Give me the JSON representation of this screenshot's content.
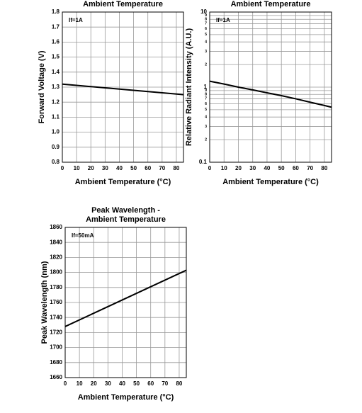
{
  "chart_data": [
    {
      "type": "line",
      "title": [
        "Ambient Temperature"
      ],
      "annotation": "If=1A",
      "x_label": "Ambient Temperature (°C)",
      "y_label": "Forward Voltage (V)",
      "xlim": [
        0,
        85
      ],
      "xticks": [
        0,
        10,
        20,
        30,
        40,
        50,
        60,
        70,
        80
      ],
      "ylim": [
        0.8,
        1.8
      ],
      "yticks": [
        0.8,
        0.9,
        {
          "value": 1,
          "label": "1.0"
        },
        1.1,
        1.2,
        1.3,
        1.4,
        1.5,
        1.6,
        1.7,
        1.8
      ],
      "grid": true,
      "log_y": false,
      "series": [
        {
          "color": "#000000",
          "x": [
            0,
            85
          ],
          "values": [
            1.32,
            1.25
          ]
        }
      ]
    },
    {
      "type": "line",
      "title": [
        "Ambient Temperature"
      ],
      "annotation": "If=1A",
      "x_label": "Ambient Temperature (°C)",
      "y_label": "Relative Radiant Intensity (A.U.)",
      "xlim": [
        0,
        85
      ],
      "xticks": [
        0,
        10,
        20,
        30,
        40,
        50,
        60,
        70,
        80
      ],
      "ylim": [
        0.1,
        10
      ],
      "yticks": [
        0.1,
        {
          "value": 0.2,
          "label": "2"
        },
        {
          "value": 0.3,
          "label": "3"
        },
        {
          "value": 0.4,
          "label": "4"
        },
        {
          "value": 0.5,
          "label": "5"
        },
        {
          "value": 0.6,
          "label": "6"
        },
        {
          "value": 0.7,
          "label": "7"
        },
        {
          "value": 0.8,
          "label": "8"
        },
        {
          "value": 0.9,
          "label": "9"
        },
        1,
        {
          "value": 2,
          "label": "2"
        },
        {
          "value": 3,
          "label": "3"
        },
        {
          "value": 4,
          "label": "4"
        },
        {
          "value": 5,
          "label": "5"
        },
        {
          "value": 6,
          "label": "6"
        },
        {
          "value": 7,
          "label": "7"
        },
        {
          "value": 8,
          "label": "8"
        },
        {
          "value": 9,
          "label": "9"
        },
        10
      ],
      "grid": true,
      "log_y": true,
      "series": [
        {
          "color": "#000000",
          "x": [
            0,
            10,
            20,
            30,
            40,
            50,
            60,
            70,
            80,
            85
          ],
          "values": [
            1.2,
            1.1,
            1.0,
            0.92,
            0.84,
            0.77,
            0.7,
            0.63,
            0.57,
            0.54
          ]
        }
      ]
    },
    {
      "type": "line",
      "title": [
        "Peak Wavelength -",
        "Ambient Temperature"
      ],
      "annotation": "If=50mA",
      "x_label": "Ambient Temperature (°C)",
      "y_label": "Peak Wavelength (nm)",
      "xlim": [
        0,
        85
      ],
      "xticks": [
        0,
        10,
        20,
        30,
        40,
        50,
        60,
        70,
        80
      ],
      "ylim": [
        1660,
        1860
      ],
      "yticks": [
        1660,
        1680,
        1700,
        1720,
        1740,
        1760,
        1780,
        1800,
        1820,
        1840,
        1860
      ],
      "grid": true,
      "log_y": false,
      "series": [
        {
          "color": "#000000",
          "x": [
            0,
            85
          ],
          "values": [
            1728,
            1803
          ]
        }
      ]
    }
  ]
}
